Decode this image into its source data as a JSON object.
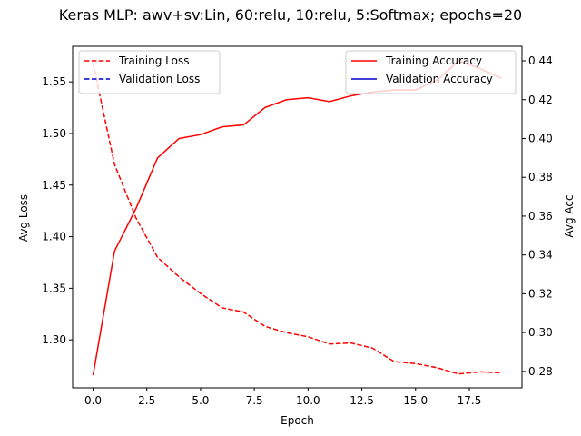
{
  "chart_data": {
    "type": "line",
    "title": "Keras MLP: awv+sv:Lin, 60:relu, 10:relu, 5:Softmax; epochs=20",
    "xlabel": "Epoch",
    "ylabel_left": "Avg Loss",
    "ylabel_right": "Avg Acc",
    "xlim": [
      -0.95,
      19.95
    ],
    "ylim_left": [
      1.2535,
      1.5845
    ],
    "ylim_right": [
      0.2715,
      0.4475
    ],
    "x_ticks": [
      0.0,
      2.5,
      5.0,
      7.5,
      10.0,
      12.5,
      15.0,
      17.5
    ],
    "x_tick_labels": [
      "0.0",
      "2.5",
      "5.0",
      "7.5",
      "10.0",
      "12.5",
      "15.0",
      "17.5"
    ],
    "y_left_ticks": [
      1.3,
      1.35,
      1.4,
      1.45,
      1.5,
      1.55
    ],
    "y_left_tick_labels": [
      "1.30",
      "1.35",
      "1.40",
      "1.45",
      "1.50",
      "1.55"
    ],
    "y_right_ticks": [
      0.28,
      0.3,
      0.32,
      0.34,
      0.36,
      0.38,
      0.4,
      0.42,
      0.44
    ],
    "y_right_tick_labels": [
      "0.28",
      "0.30",
      "0.32",
      "0.34",
      "0.36",
      "0.38",
      "0.40",
      "0.42",
      "0.44"
    ],
    "grid": false,
    "x": [
      0,
      1,
      2,
      3,
      4,
      5,
      6,
      7,
      8,
      9,
      10,
      11,
      12,
      13,
      14,
      15,
      16,
      17,
      18,
      19
    ],
    "series_left": [
      {
        "name": "Training Loss",
        "color": "#ff0000",
        "style": "dashed",
        "values": [
          1.568,
          1.47,
          1.418,
          1.38,
          1.361,
          1.345,
          1.331,
          1.327,
          1.313,
          1.307,
          1.303,
          1.296,
          1.297,
          1.292,
          1.279,
          1.277,
          1.273,
          1.267,
          1.269,
          1.268
        ]
      },
      {
        "name": "Validation Loss",
        "color": "#0000cc",
        "style": "dashed",
        "values": []
      }
    ],
    "series_right": [
      {
        "name": "Training Accuracy",
        "color": "#ff0000",
        "style": "solid",
        "values": [
          0.278,
          0.342,
          0.364,
          0.39,
          0.4,
          0.402,
          0.406,
          0.407,
          0.416,
          0.42,
          0.421,
          0.419,
          0.422,
          0.424,
          0.425,
          0.425,
          0.43,
          0.44,
          0.436,
          0.431
        ]
      },
      {
        "name": "Validation Accuracy",
        "color": "#0000cc",
        "style": "solid",
        "values": []
      }
    ],
    "legend_left_placement": "upper-left",
    "legend_right_placement": "upper-right"
  }
}
